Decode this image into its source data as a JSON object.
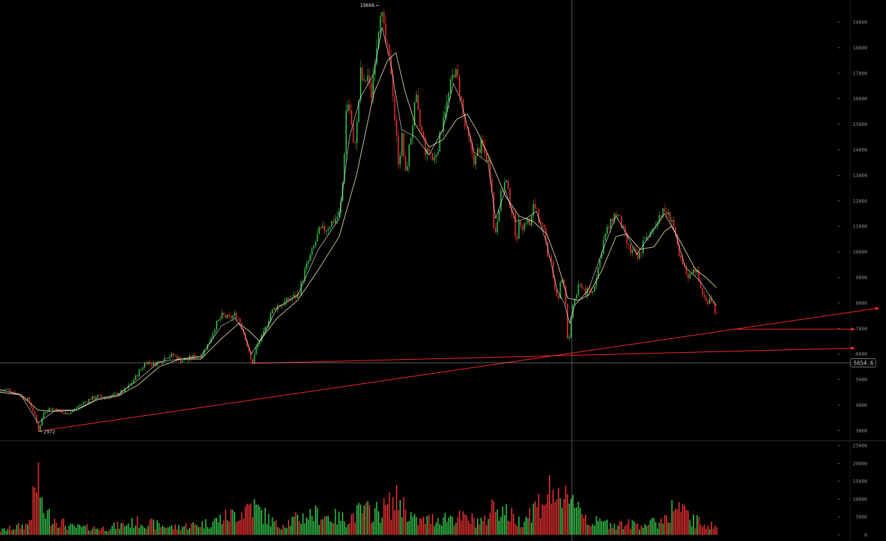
{
  "chart_data": {
    "type": "candlestick",
    "panels": [
      "price",
      "volume"
    ],
    "price_axis": {
      "ticks": [
        "19000",
        "18000",
        "17000",
        "16000",
        "15000",
        "14000",
        "13000",
        "12000",
        "11000",
        "10000",
        "9000",
        "8000",
        "7000",
        "6000",
        "5000",
        "4000",
        "3000"
      ],
      "ylim": [
        2700,
        19900
      ]
    },
    "volume_axis": {
      "ticks": [
        "25000",
        "20000",
        "15000",
        "10000",
        "5000",
        "0"
      ],
      "ylim": [
        0,
        26000
      ]
    },
    "annotations": {
      "high_label": "19666",
      "low_label": "2972",
      "crosshair_price": "5654.6"
    },
    "price_path": [
      [
        0,
        4550
      ],
      [
        10,
        4620
      ],
      [
        20,
        4500
      ],
      [
        30,
        4350
      ],
      [
        40,
        4200
      ],
      [
        48,
        3700
      ],
      [
        55,
        3000
      ],
      [
        62,
        3700
      ],
      [
        70,
        3850
      ],
      [
        80,
        3850
      ],
      [
        90,
        3650
      ],
      [
        100,
        3700
      ],
      [
        110,
        3900
      ],
      [
        120,
        4100
      ],
      [
        130,
        4250
      ],
      [
        140,
        4350
      ],
      [
        150,
        4300
      ],
      [
        160,
        4350
      ],
      [
        170,
        4450
      ],
      [
        180,
        4600
      ],
      [
        190,
        4900
      ],
      [
        200,
        5300
      ],
      [
        210,
        5700
      ],
      [
        220,
        5600
      ],
      [
        230,
        5700
      ],
      [
        240,
        5900
      ],
      [
        250,
        5950
      ],
      [
        260,
        5750
      ],
      [
        270,
        5800
      ],
      [
        280,
        5900
      ],
      [
        290,
        5950
      ],
      [
        300,
        6400
      ],
      [
        310,
        7100
      ],
      [
        320,
        7500
      ],
      [
        330,
        7400
      ],
      [
        340,
        7550
      ],
      [
        345,
        7300
      ],
      [
        352,
        6800
      ],
      [
        358,
        6100
      ],
      [
        363,
        5600
      ],
      [
        370,
        6300
      ],
      [
        380,
        6800
      ],
      [
        390,
        7600
      ],
      [
        400,
        7900
      ],
      [
        410,
        8000
      ],
      [
        420,
        8200
      ],
      [
        430,
        8300
      ],
      [
        440,
        9300
      ],
      [
        450,
        10000
      ],
      [
        460,
        10800
      ],
      [
        470,
        10900
      ],
      [
        480,
        11200
      ],
      [
        490,
        11500
      ],
      [
        495,
        13000
      ],
      [
        500,
        16000
      ],
      [
        505,
        15500
      ],
      [
        510,
        14000
      ],
      [
        515,
        15000
      ],
      [
        520,
        17000
      ],
      [
        525,
        16500
      ],
      [
        530,
        17000
      ],
      [
        535,
        16000
      ],
      [
        540,
        17500
      ],
      [
        545,
        18500
      ],
      [
        548,
        19666
      ],
      [
        552,
        19000
      ],
      [
        556,
        18200
      ],
      [
        560,
        17700
      ],
      [
        565,
        17000
      ],
      [
        570,
        15000
      ],
      [
        575,
        13500
      ],
      [
        580,
        14500
      ],
      [
        585,
        13000
      ],
      [
        590,
        14000
      ],
      [
        595,
        15000
      ],
      [
        600,
        16000
      ],
      [
        605,
        15000
      ],
      [
        610,
        14500
      ],
      [
        615,
        13800
      ],
      [
        620,
        14000
      ],
      [
        625,
        13500
      ],
      [
        630,
        14000
      ],
      [
        635,
        14500
      ],
      [
        640,
        15500
      ],
      [
        645,
        15800
      ],
      [
        650,
        16500
      ],
      [
        655,
        17100
      ],
      [
        660,
        16800
      ],
      [
        665,
        16000
      ],
      [
        670,
        15000
      ],
      [
        675,
        14500
      ],
      [
        680,
        14000
      ],
      [
        685,
        13500
      ],
      [
        690,
        14000
      ],
      [
        695,
        14200
      ],
      [
        700,
        13800
      ],
      [
        705,
        13500
      ],
      [
        710,
        12500
      ],
      [
        713,
        10500
      ],
      [
        716,
        11000
      ],
      [
        720,
        11800
      ],
      [
        725,
        12500
      ],
      [
        730,
        12800
      ],
      [
        735,
        12000
      ],
      [
        740,
        11500
      ],
      [
        745,
        10500
      ],
      [
        750,
        11200
      ],
      [
        755,
        11000
      ],
      [
        760,
        11300
      ],
      [
        765,
        11000
      ],
      [
        770,
        11800
      ],
      [
        775,
        11700
      ],
      [
        780,
        11000
      ],
      [
        785,
        10800
      ],
      [
        790,
        10000
      ],
      [
        795,
        9800
      ],
      [
        800,
        8600
      ],
      [
        805,
        8000
      ],
      [
        810,
        9000
      ],
      [
        815,
        8700
      ],
      [
        820,
        6200
      ],
      [
        823,
        6900
      ],
      [
        826,
        7900
      ],
      [
        830,
        8200
      ],
      [
        835,
        8600
      ],
      [
        840,
        8700
      ],
      [
        845,
        8400
      ],
      [
        850,
        8500
      ],
      [
        855,
        8400
      ],
      [
        860,
        9000
      ],
      [
        865,
        9600
      ],
      [
        870,
        10300
      ],
      [
        875,
        10800
      ],
      [
        880,
        11000
      ],
      [
        885,
        11400
      ],
      [
        890,
        11500
      ],
      [
        895,
        11200
      ],
      [
        900,
        10800
      ],
      [
        905,
        10300
      ],
      [
        910,
        10000
      ],
      [
        915,
        10000
      ],
      [
        920,
        9700
      ],
      [
        925,
        10000
      ],
      [
        930,
        10600
      ],
      [
        935,
        10400
      ],
      [
        940,
        10800
      ],
      [
        945,
        11000
      ],
      [
        950,
        11400
      ],
      [
        955,
        11500
      ],
      [
        960,
        11600
      ],
      [
        965,
        11400
      ],
      [
        970,
        11300
      ],
      [
        975,
        10500
      ],
      [
        980,
        9800
      ],
      [
        985,
        9500
      ],
      [
        990,
        9200
      ],
      [
        995,
        9000
      ],
      [
        1000,
        9400
      ],
      [
        1005,
        9300
      ],
      [
        1010,
        8700
      ],
      [
        1015,
        8300
      ],
      [
        1020,
        8000
      ],
      [
        1025,
        8300
      ],
      [
        1030,
        7900
      ],
      [
        1035,
        7500
      ]
    ],
    "ma_path": [
      [
        0,
        4500
      ],
      [
        30,
        4400
      ],
      [
        55,
        3800
      ],
      [
        80,
        3750
      ],
      [
        110,
        3800
      ],
      [
        140,
        4200
      ],
      [
        170,
        4350
      ],
      [
        200,
        4800
      ],
      [
        230,
        5500
      ],
      [
        260,
        5800
      ],
      [
        290,
        5800
      ],
      [
        320,
        6600
      ],
      [
        345,
        7200
      ],
      [
        360,
        6900
      ],
      [
        375,
        6500
      ],
      [
        400,
        7400
      ],
      [
        430,
        8100
      ],
      [
        460,
        9300
      ],
      [
        490,
        10600
      ],
      [
        515,
        13000
      ],
      [
        540,
        16200
      ],
      [
        560,
        17500
      ],
      [
        572,
        17800
      ],
      [
        585,
        16300
      ],
      [
        600,
        15000
      ],
      [
        620,
        14100
      ],
      [
        640,
        14400
      ],
      [
        660,
        15200
      ],
      [
        675,
        15400
      ],
      [
        690,
        14700
      ],
      [
        710,
        13500
      ],
      [
        730,
        12200
      ],
      [
        750,
        11400
      ],
      [
        770,
        11200
      ],
      [
        790,
        10700
      ],
      [
        805,
        9600
      ],
      [
        820,
        8200
      ],
      [
        835,
        8100
      ],
      [
        850,
        8300
      ],
      [
        870,
        9300
      ],
      [
        890,
        10600
      ],
      [
        905,
        10700
      ],
      [
        925,
        10100
      ],
      [
        945,
        10200
      ],
      [
        960,
        10800
      ],
      [
        970,
        11000
      ],
      [
        985,
        10300
      ],
      [
        1005,
        9300
      ],
      [
        1020,
        9000
      ],
      [
        1035,
        8600
      ]
    ],
    "ma_fast_path": [
      [
        0,
        4600
      ],
      [
        30,
        4400
      ],
      [
        55,
        3300
      ],
      [
        80,
        3800
      ],
      [
        110,
        3800
      ],
      [
        140,
        4250
      ],
      [
        170,
        4400
      ],
      [
        200,
        5000
      ],
      [
        230,
        5700
      ],
      [
        260,
        5800
      ],
      [
        290,
        5900
      ],
      [
        320,
        7100
      ],
      [
        340,
        7400
      ],
      [
        352,
        6900
      ],
      [
        363,
        6000
      ],
      [
        380,
        6700
      ],
      [
        400,
        7800
      ],
      [
        430,
        8300
      ],
      [
        460,
        10100
      ],
      [
        490,
        11300
      ],
      [
        505,
        14500
      ],
      [
        520,
        16000
      ],
      [
        540,
        17000
      ],
      [
        552,
        18800
      ],
      [
        565,
        17300
      ],
      [
        580,
        14800
      ],
      [
        600,
        14500
      ],
      [
        620,
        13800
      ],
      [
        640,
        14800
      ],
      [
        655,
        16600
      ],
      [
        665,
        16000
      ],
      [
        685,
        13900
      ],
      [
        705,
        13500
      ],
      [
        716,
        11300
      ],
      [
        730,
        12400
      ],
      [
        745,
        11200
      ],
      [
        760,
        11300
      ],
      [
        775,
        11600
      ],
      [
        790,
        10300
      ],
      [
        805,
        8500
      ],
      [
        815,
        8000
      ],
      [
        823,
        7200
      ],
      [
        830,
        7900
      ],
      [
        850,
        8500
      ],
      [
        870,
        10000
      ],
      [
        890,
        11400
      ],
      [
        905,
        10700
      ],
      [
        920,
        9900
      ],
      [
        940,
        10700
      ],
      [
        960,
        11500
      ],
      [
        975,
        10800
      ],
      [
        990,
        9400
      ],
      [
        1010,
        8900
      ],
      [
        1035,
        7900
      ]
    ],
    "volume_profile": [
      [
        0,
        1600
      ],
      [
        40,
        4000
      ],
      [
        55,
        23000
      ],
      [
        60,
        9000
      ],
      [
        100,
        3000
      ],
      [
        150,
        2500
      ],
      [
        200,
        5000
      ],
      [
        250,
        2800
      ],
      [
        300,
        4500
      ],
      [
        350,
        9000
      ],
      [
        360,
        12000
      ],
      [
        400,
        3500
      ],
      [
        450,
        8000
      ],
      [
        500,
        6000
      ],
      [
        520,
        9000
      ],
      [
        548,
        9000
      ],
      [
        575,
        13500
      ],
      [
        600,
        5000
      ],
      [
        650,
        7000
      ],
      [
        700,
        5000
      ],
      [
        712,
        12000
      ],
      [
        750,
        5000
      ],
      [
        800,
        18000
      ],
      [
        810,
        8000
      ],
      [
        820,
        18000
      ],
      [
        850,
        5000
      ],
      [
        900,
        4000
      ],
      [
        950,
        4500
      ],
      [
        975,
        11000
      ],
      [
        1000,
        5500
      ],
      [
        1035,
        3000
      ]
    ],
    "trendlines": [
      {
        "from": [
          55,
          2972
        ],
        "to": [
          1270,
          7800
        ]
      },
      {
        "from": [
          363,
          5630
        ],
        "to": [
          1235,
          6230
        ]
      },
      {
        "from": [
          1060,
          6970
        ],
        "to": [
          1235,
          6970
        ]
      }
    ],
    "colors": {
      "background": "#000000",
      "up": "#2fb344",
      "down": "#d62c2c",
      "ma_slow": "#e9d9a3",
      "ma_fast": "#ffffff",
      "trendline": "#ff2a2a",
      "grid": "#333333",
      "crosshair": "#bdbdbd",
      "tick_text": "#8a8a8a"
    }
  }
}
